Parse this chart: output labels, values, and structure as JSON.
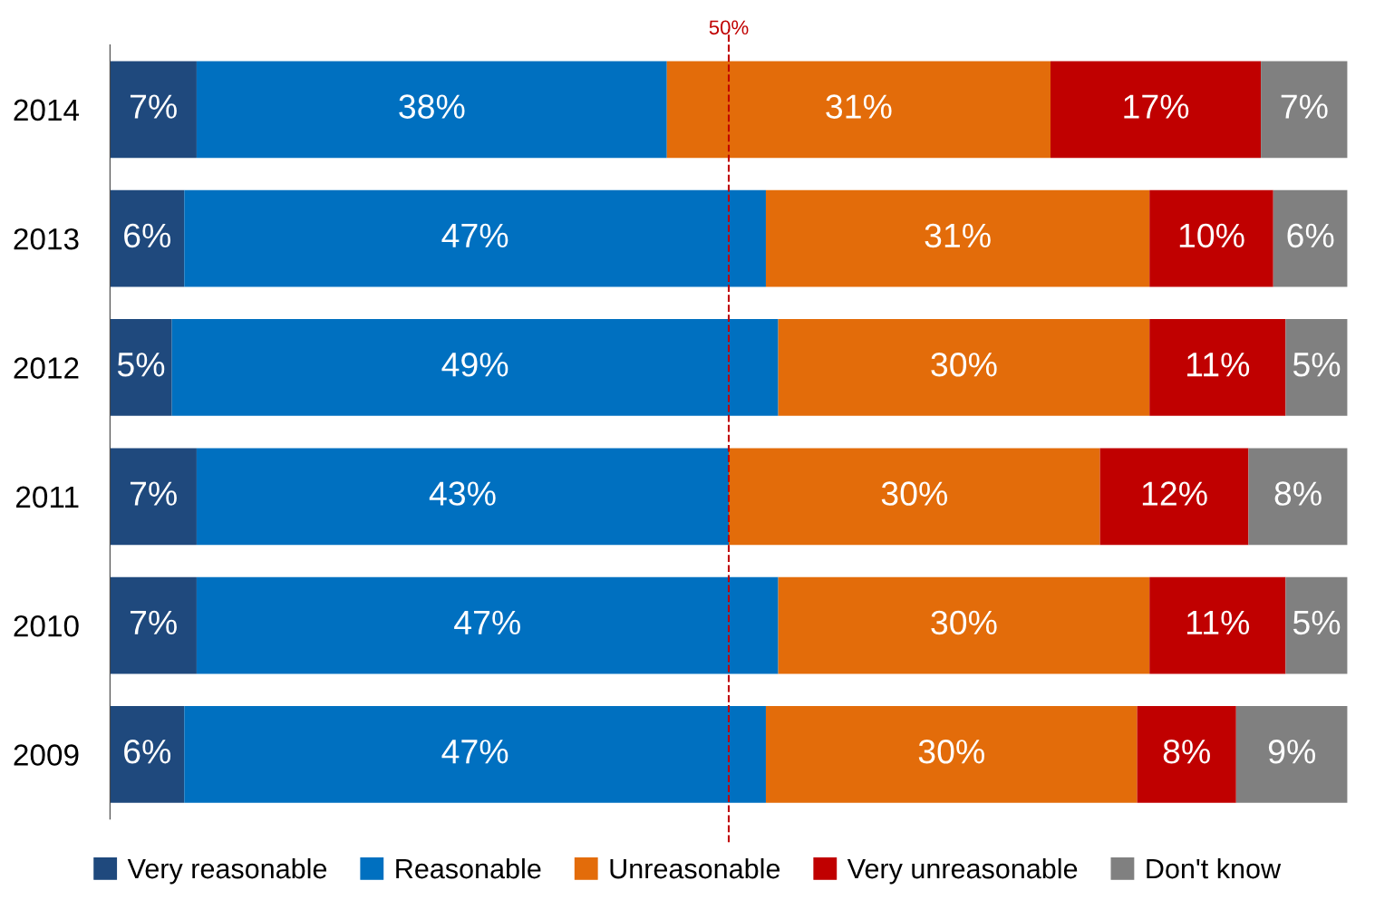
{
  "chart_data": {
    "type": "bar",
    "orientation": "horizontal",
    "stacked": true,
    "categories": [
      "2014",
      "2013",
      "2012",
      "2011",
      "2010",
      "2009"
    ],
    "series": [
      {
        "name": "Very reasonable",
        "color": "#1f497d",
        "values": [
          7,
          6,
          5,
          7,
          7,
          6
        ],
        "value_labels": [
          "7%",
          "6%",
          "5%",
          "7%",
          "7%",
          "6%"
        ]
      },
      {
        "name": "Reasonable",
        "color": "#0070c0",
        "values": [
          38,
          47,
          49,
          43,
          47,
          47
        ],
        "value_labels": [
          "38%",
          "47%",
          "49%",
          "43%",
          "47%",
          "47%"
        ]
      },
      {
        "name": "Unreasonable",
        "color": "#e36c0a",
        "values": [
          31,
          31,
          30,
          30,
          30,
          30
        ],
        "value_labels": [
          "31%",
          "31%",
          "30%",
          "30%",
          "30%",
          "30%"
        ]
      },
      {
        "name": "Very unreasonable",
        "color": "#c00000",
        "values": [
          17,
          10,
          11,
          12,
          11,
          8
        ],
        "value_labels": [
          "17%",
          "10%",
          "11%",
          "12%",
          "11%",
          "8%"
        ]
      },
      {
        "name": "Don't know",
        "color": "#808080",
        "values": [
          7,
          6,
          5,
          8,
          5,
          9
        ],
        "value_labels": [
          "7%",
          "6%",
          "5%",
          "8%",
          "5%",
          "9%"
        ]
      }
    ],
    "xlim": [
      0,
      100
    ],
    "tick_labels": "y",
    "ref_lines": [
      {
        "axis": "x",
        "value": 50,
        "label": "50%",
        "color": "#c00000",
        "line_style": "dashed"
      }
    ],
    "legend": "bottom",
    "grid": false
  }
}
